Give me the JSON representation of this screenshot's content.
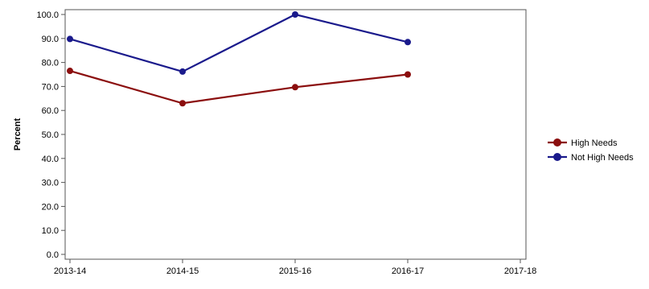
{
  "chart_data": {
    "type": "line",
    "categories": [
      "2013-14",
      "2014-15",
      "2015-16",
      "2016-17",
      "2017-18"
    ],
    "ylabel": "Percent",
    "xlabel": "",
    "ylim": [
      0,
      100
    ],
    "y_ticks": [
      "0.0",
      "10.0",
      "20.0",
      "30.0",
      "40.0",
      "50.0",
      "60.0",
      "70.0",
      "80.0",
      "90.0",
      "100.0"
    ],
    "grid": false,
    "legend_position": "right",
    "series": [
      {
        "name": "High Needs",
        "color": "#8b0e0e",
        "values": [
          76.5,
          63.0,
          69.7,
          75.0,
          null
        ]
      },
      {
        "name": "Not High Needs",
        "color": "#1a1a8c",
        "values": [
          89.8,
          76.2,
          100.0,
          88.5,
          null
        ]
      }
    ]
  }
}
